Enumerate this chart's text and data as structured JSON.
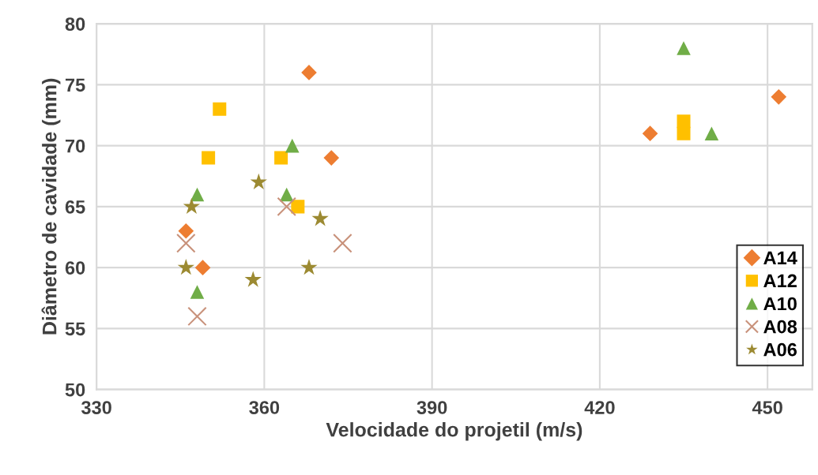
{
  "chart_data": {
    "type": "scatter",
    "xlabel": "Velocidade do projetil (m/s)",
    "ylabel": "Diâmetro de cavidade (mm)",
    "xlim": [
      330,
      458
    ],
    "xticks": [
      330,
      360,
      390,
      420,
      450
    ],
    "ylim": [
      50,
      80
    ],
    "yticks": [
      50,
      55,
      60,
      65,
      70,
      75,
      80
    ],
    "grid": true,
    "legend": "bottom right",
    "series": [
      {
        "name": "A14",
        "color": "#ed7d31",
        "marker": "diamond",
        "x": [
          368,
          372,
          346,
          349,
          429,
          452
        ],
        "values": [
          76,
          69,
          63,
          60,
          71,
          74
        ]
      },
      {
        "name": "A12",
        "color": "#ffc000",
        "marker": "square",
        "x": [
          352,
          350,
          363,
          366,
          435,
          435
        ],
        "values": [
          73,
          69,
          69,
          65,
          72,
          71
        ]
      },
      {
        "name": "A10",
        "color": "#70ad47",
        "marker": "triangle",
        "x": [
          365,
          348,
          364,
          348,
          435,
          440
        ],
        "values": [
          70,
          66,
          66,
          58,
          78,
          71
        ]
      },
      {
        "name": "A08",
        "color": "#c8917a",
        "marker": "cross",
        "x": [
          346,
          348,
          364,
          374
        ],
        "values": [
          62,
          56,
          65,
          62
        ]
      },
      {
        "name": "A06",
        "color": "#9c8a32",
        "marker": "star",
        "x": [
          347,
          359,
          346,
          358,
          370,
          368
        ],
        "values": [
          65,
          67,
          60,
          59,
          64,
          60
        ]
      }
    ]
  }
}
